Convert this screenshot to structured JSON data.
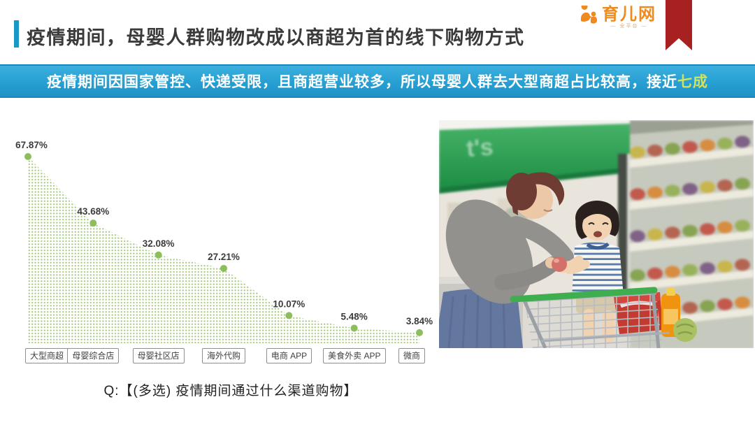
{
  "header": {
    "title": "疫情期间，母婴人群购物改成以商超为首的线下购物方式",
    "accent_color": "#1898c6",
    "logo": {
      "name": "育儿网",
      "tagline": "— 全平台 —",
      "color": "#ef8a1f"
    },
    "ribbon_color": "#a6211f"
  },
  "banner": {
    "text": "疫情期间因国家管控、快递受限，且商超营业较多，所以母婴人群去大型商超占比较高，接近",
    "highlight": "七成",
    "bg_color": "#2aa2d4",
    "highlight_color": "#cfe261"
  },
  "chart_data": {
    "type": "area",
    "categories": [
      "大型商超",
      "母婴综合店",
      "母婴社区店",
      "海外代购",
      "电商 APP",
      "美食外卖 APP",
      "微商"
    ],
    "values": [
      67.87,
      43.68,
      32.08,
      27.21,
      10.07,
      5.48,
      3.84
    ],
    "value_labels": [
      "67.87%",
      "43.68%",
      "32.08%",
      "27.21%",
      "10.07%",
      "5.48%",
      "3.84%"
    ],
    "title": "",
    "xlabel": "",
    "ylabel": "",
    "ylim": [
      0,
      70
    ],
    "grid": false,
    "legend": "none",
    "fill_style": "dotted",
    "dot_color": "#a2c678",
    "marker_color": "#8cbe5b",
    "label_color": "#3c3c3c"
  },
  "caption": "Q:【(多选) 疫情期间通过什么渠道购物】",
  "photo": {
    "description": "妈妈在超市把苹果递给坐在购物车里的孩子"
  }
}
